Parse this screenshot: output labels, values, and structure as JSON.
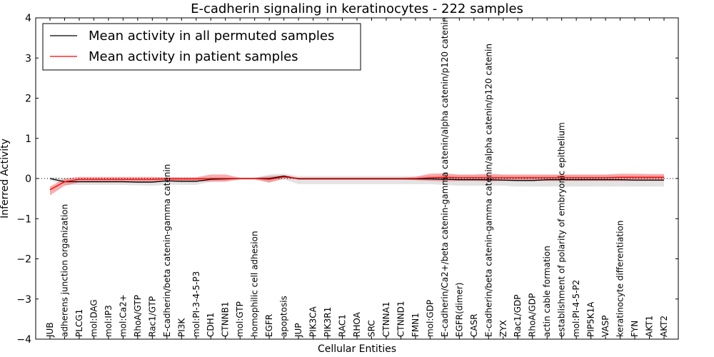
{
  "chart_data": {
    "type": "line",
    "title": "E-cadherin signaling in keratinocytes - 222 samples",
    "xlabel": "Cellular Entities",
    "ylabel": "Inferred Activity",
    "ylim": [
      -4,
      4
    ],
    "yticks": [
      "−4",
      "−3",
      "−2",
      "−1",
      "0",
      "1",
      "2",
      "3",
      "4"
    ],
    "grid": false,
    "legend_position": "top-left",
    "categories": [
      "JUB",
      "adherens junction organization",
      "PLCG1",
      "mol:DAG",
      "mol:IP3",
      "mol:Ca2+",
      "RhoA/GTP",
      "Rac1/GTP",
      "E-cadherin/beta catenin-gamma catenin",
      "PI3K",
      "mol:PI-3-4-5-P3",
      "CDH1",
      "CTNNB1",
      "mol:GTP",
      "homophilic cell adhesion",
      "EGFR",
      "apoptosis",
      "JUP",
      "PIK3CA",
      "PIK3R1",
      "RAC1",
      "RHOA",
      "SRC",
      "CTNNA1",
      "CTNND1",
      "FMN1",
      "mol:GDP",
      "E-cadherin/Ca2+/beta catenin-gamma catenin/alpha catenin/p120 catenin",
      "EGFR(dimer)",
      "CASR",
      "E-cadherin/beta catenin-gamma catenin/alpha catenin/p120 catenin",
      "ZYX",
      "Rac1/GDP",
      "RhoA/GDP",
      "actin cable formation",
      "establishment of polarity of embryonic epithelium",
      "mol:PI-4-5-P2",
      "PIP5K1A",
      "VASP",
      "keratinocyte differentiation",
      "FYN",
      "AKT1",
      "AKT2"
    ],
    "series": [
      {
        "name": "Mean activity in all permuted samples",
        "color": "#000000",
        "band_color": "#c8c8c8",
        "values": [
          0.0,
          -0.08,
          -0.08,
          -0.08,
          -0.08,
          -0.08,
          -0.09,
          -0.09,
          -0.06,
          -0.07,
          -0.07,
          -0.02,
          -0.01,
          0.0,
          0.0,
          0.0,
          0.06,
          -0.01,
          -0.01,
          -0.01,
          -0.01,
          -0.01,
          -0.01,
          -0.01,
          -0.01,
          -0.01,
          -0.01,
          -0.02,
          -0.03,
          -0.03,
          -0.03,
          -0.04,
          -0.05,
          -0.05,
          -0.03,
          -0.03,
          -0.03,
          -0.03,
          -0.03,
          -0.03,
          -0.04,
          -0.04,
          -0.04
        ],
        "upper": [
          0.04,
          0.01,
          0.0,
          0.0,
          0.0,
          0.0,
          0.0,
          0.0,
          0.03,
          0.02,
          0.02,
          0.03,
          0.03,
          0.02,
          0.02,
          0.1,
          0.12,
          0.06,
          0.06,
          0.06,
          0.06,
          0.06,
          0.06,
          0.06,
          0.06,
          0.06,
          0.07,
          0.08,
          0.08,
          0.08,
          0.08,
          0.08,
          0.07,
          0.07,
          0.08,
          0.08,
          0.08,
          0.08,
          0.08,
          0.08,
          0.08,
          0.08,
          0.08
        ],
        "lower": [
          -0.04,
          -0.16,
          -0.16,
          -0.16,
          -0.16,
          -0.16,
          -0.17,
          -0.18,
          -0.15,
          -0.16,
          -0.16,
          -0.08,
          -0.06,
          -0.03,
          -0.03,
          -0.1,
          -0.02,
          -0.14,
          -0.14,
          -0.14,
          -0.14,
          -0.14,
          -0.14,
          -0.14,
          -0.14,
          -0.14,
          -0.14,
          -0.16,
          -0.18,
          -0.18,
          -0.18,
          -0.18,
          -0.2,
          -0.2,
          -0.2,
          -0.2,
          -0.2,
          -0.2,
          -0.2,
          -0.2,
          -0.2,
          -0.2,
          -0.2
        ]
      },
      {
        "name": "Mean activity in patient samples",
        "color": "#ff0000",
        "band_color": "#f26b6b",
        "values": [
          -0.28,
          -0.08,
          -0.02,
          -0.02,
          -0.02,
          -0.02,
          -0.02,
          -0.02,
          -0.01,
          -0.01,
          -0.01,
          0.0,
          0.0,
          0.0,
          0.0,
          -0.02,
          0.04,
          0.0,
          0.0,
          0.0,
          0.0,
          0.0,
          0.0,
          0.0,
          0.0,
          0.0,
          0.02,
          0.03,
          0.02,
          0.02,
          0.02,
          0.02,
          0.02,
          0.02,
          0.02,
          0.02,
          0.02,
          0.02,
          0.02,
          0.03,
          0.03,
          0.03,
          0.03
        ],
        "upper": [
          -0.2,
          0.0,
          0.04,
          0.04,
          0.04,
          0.04,
          0.04,
          0.04,
          0.03,
          0.03,
          0.03,
          0.1,
          0.1,
          0.02,
          0.02,
          0.06,
          0.08,
          0.02,
          0.02,
          0.02,
          0.02,
          0.02,
          0.02,
          0.02,
          0.02,
          0.04,
          0.12,
          0.13,
          0.1,
          0.1,
          0.12,
          0.1,
          0.1,
          0.1,
          0.1,
          0.1,
          0.1,
          0.1,
          0.1,
          0.12,
          0.12,
          0.11,
          0.11
        ],
        "lower": [
          -0.42,
          -0.18,
          -0.1,
          -0.1,
          -0.1,
          -0.1,
          -0.1,
          -0.1,
          -0.07,
          -0.07,
          -0.07,
          -0.08,
          -0.08,
          -0.02,
          -0.02,
          -0.1,
          0.0,
          -0.02,
          -0.02,
          -0.02,
          -0.02,
          -0.02,
          -0.02,
          -0.02,
          -0.02,
          -0.04,
          -0.06,
          -0.07,
          -0.06,
          -0.06,
          -0.07,
          -0.06,
          -0.06,
          -0.06,
          -0.06,
          -0.06,
          -0.06,
          -0.06,
          -0.06,
          -0.06,
          -0.06,
          -0.06,
          -0.06
        ]
      }
    ]
  }
}
